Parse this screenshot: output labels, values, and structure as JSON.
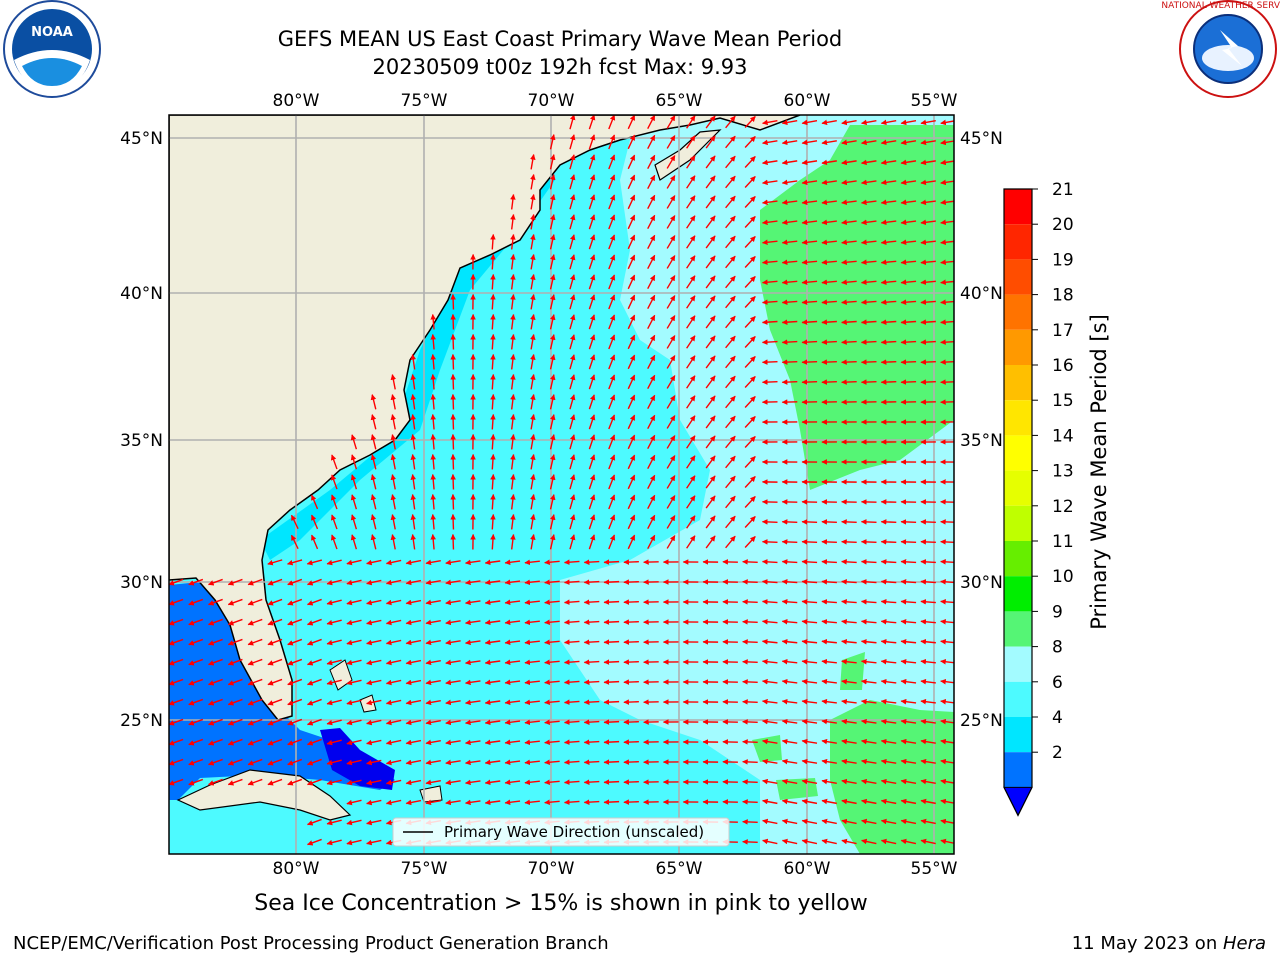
{
  "title": {
    "line1": "GEFS MEAN US East Coast Primary Wave Mean Period",
    "line2": "20230509 t00z 192h fcst   Max: 9.93"
  },
  "logos": {
    "left_text": "NOAA",
    "right_text": "NATIONAL WEATHER SERVICE"
  },
  "map": {
    "lon_ticks": [
      "80°W",
      "75°W",
      "70°W",
      "65°W",
      "60°W",
      "55°W"
    ],
    "lat_ticks": [
      "45°N",
      "40°N",
      "35°N",
      "30°N",
      "25°N"
    ],
    "legend_label": "Primary Wave Direction (unscaled)",
    "colors": {
      "land": "#f0eedc",
      "period_2_4": "#0073ff",
      "period_4_6": "#00e6ff",
      "period_6_8": "#4dfaff",
      "period_8_9": "#a3fbff",
      "period_9_10": "#55f575",
      "arrow": "#ff0000"
    }
  },
  "colorbar": {
    "label": "Primary Wave Mean Period [s]",
    "ticks": [
      "21",
      "20",
      "19",
      "18",
      "17",
      "16",
      "15",
      "14",
      "13",
      "12",
      "11",
      "10",
      "9",
      "8",
      "6",
      "4",
      "2"
    ],
    "colors": [
      "#ff0000",
      "#ff2600",
      "#ff4d00",
      "#ff7300",
      "#ff9900",
      "#ffbf00",
      "#ffe600",
      "#ffff00",
      "#e6ff00",
      "#bfff00",
      "#66ee00",
      "#00ee00",
      "#55f575",
      "#a3fbff",
      "#4dfaff",
      "#00e6ff",
      "#0073ff"
    ],
    "extend_color": "#0000ff"
  },
  "caption": "Sea Ice Concentration > 15% is shown in pink to yellow",
  "footer": {
    "left": "NCEP/EMC/Verification Post Processing Product Generation Branch",
    "right_date": "11 May 2023 on ",
    "right_host": "Hera"
  }
}
